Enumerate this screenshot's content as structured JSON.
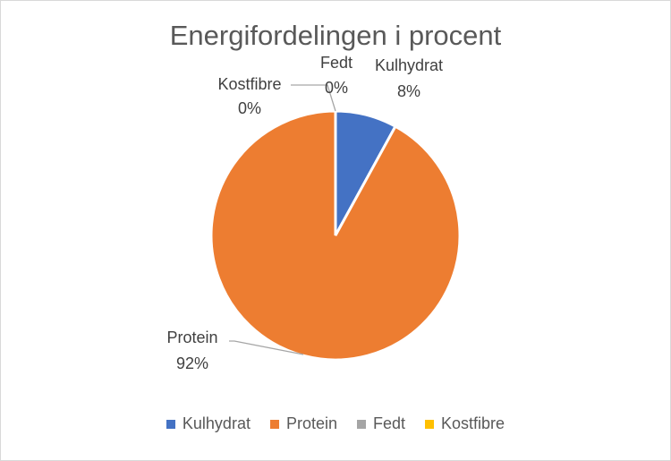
{
  "chart_data": {
    "type": "pie",
    "title": "Energifordelingen i procent",
    "categories": [
      "Kulhydrat",
      "Protein",
      "Fedt",
      "Kostfibre"
    ],
    "values": [
      8,
      92,
      0,
      0
    ],
    "labels": [
      "8%",
      "92%",
      "0%",
      "0%"
    ],
    "colors": [
      "#4472C4",
      "#ED7D31",
      "#A5A5A5",
      "#FFC000"
    ],
    "legend_position": "bottom",
    "start_angle": "12 o'clock, clockwise"
  }
}
